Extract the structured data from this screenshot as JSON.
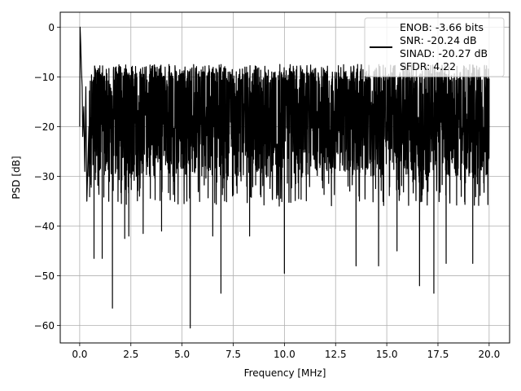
{
  "chart_data": {
    "type": "line",
    "title": "",
    "xlabel": "Frequency [MHz]",
    "ylabel": "PSD [dB]",
    "xlim": [
      -0.95,
      21.0
    ],
    "ylim": [
      -63.5,
      3.0
    ],
    "xticks": [
      0.0,
      2.5,
      5.0,
      7.5,
      10.0,
      12.5,
      15.0,
      17.5,
      20.0
    ],
    "xtick_labels": [
      "0.0",
      "2.5",
      "5.0",
      "7.5",
      "10.0",
      "12.5",
      "15.0",
      "17.5",
      "20.0"
    ],
    "yticks": [
      0,
      -10,
      -20,
      -30,
      -40,
      -50,
      -60
    ],
    "ytick_labels": [
      "0",
      "−10",
      "−20",
      "−30",
      "−40",
      "−50",
      "−60"
    ],
    "grid": true,
    "legend_position": "top-right",
    "line_color": "#000000",
    "legend": [
      "ENOB: -3.66 bits",
      "SNR: -20.24 dB",
      "SINAD: -20.27 dB",
      "SFDR: 4.22"
    ],
    "noise_floor_db": -20.5,
    "noise_spread_db": [
      -30,
      -9
    ],
    "f_max": 20.0,
    "series": [
      {
        "x": [
          0.0,
          0.02,
          0.05,
          0.08,
          0.12,
          0.15,
          0.2,
          0.25,
          0.3,
          0.35,
          0.45,
          0.7,
          1.1,
          1.6,
          2.2,
          2.4,
          3.1,
          4.0,
          5.4,
          6.5,
          6.9,
          8.3,
          10.0,
          13.5,
          14.6,
          15.5,
          16.6,
          17.3,
          17.9,
          19.2,
          20.0
        ],
        "y": [
          -20,
          0.0,
          -3.5,
          -8,
          -12,
          -22,
          -16,
          -29,
          -12,
          -35,
          -20,
          -46.5,
          -46.5,
          -56.5,
          -42.5,
          -42,
          -41.5,
          -41,
          -60.5,
          -42,
          -53.5,
          -42,
          -49.5,
          -48,
          -48,
          -45,
          -52,
          -53.5,
          -47.5,
          -47.5,
          -20
        ]
      }
    ]
  }
}
